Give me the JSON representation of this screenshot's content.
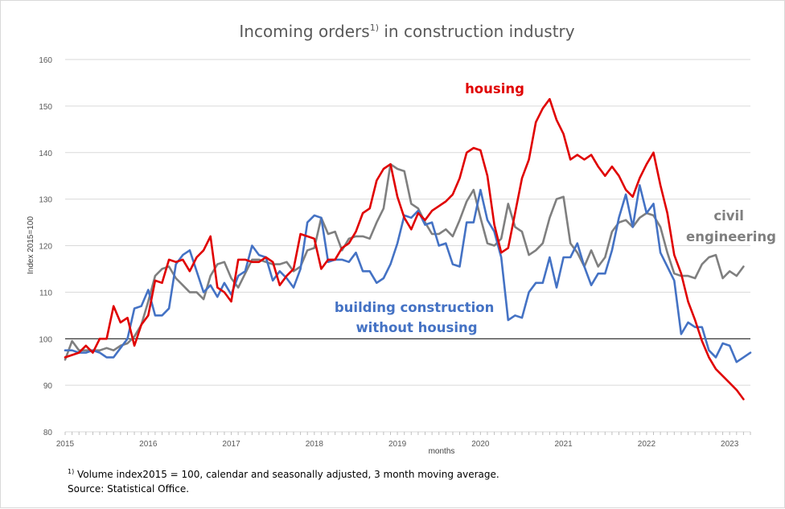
{
  "colors": {
    "housing": "#e00000",
    "civil": "#7f7f7f",
    "building": "#4472c4",
    "grid": "#d9d9d9",
    "baseline": "#000000"
  },
  "chart_data": {
    "type": "line",
    "title_main": "Incoming orders",
    "title_sup": "1)",
    "title_rest": " in construction industry",
    "ylabel": "Index 2015=100",
    "xlabel": "months",
    "ylim": [
      80,
      160
    ],
    "yticks": [
      80,
      90,
      100,
      110,
      120,
      130,
      140,
      150,
      160
    ],
    "xlim": [
      2015.0,
      2023.25
    ],
    "xticks": [
      "2015",
      "2016",
      "2017",
      "2018",
      "2019",
      "2020",
      "2021",
      "2022",
      "2023"
    ],
    "reference_line": 100,
    "grid": "horizontal",
    "start": "2015-01",
    "series": [
      {
        "key": "housing",
        "name_lines": [
          "housing"
        ],
        "values": [
          96,
          96.5,
          97,
          98.5,
          97,
          100,
          100,
          107,
          103.5,
          104.5,
          98.5,
          103,
          105,
          112.5,
          112,
          117,
          116.5,
          117,
          114.5,
          117.5,
          119,
          122,
          111,
          110,
          108,
          117,
          117,
          116.5,
          116.5,
          117.5,
          116.5,
          111.5,
          113.5,
          115,
          122.5,
          122,
          121.5,
          115,
          117,
          117,
          119.5,
          120.5,
          123,
          127,
          128,
          134,
          136.5,
          137.5,
          130.5,
          126,
          123.5,
          127,
          125.5,
          127.5,
          128.5,
          129.5,
          131,
          134.5,
          140,
          141,
          140.5,
          135,
          124.5,
          118.5,
          119.5,
          127,
          134.5,
          138.5,
          146.5,
          149.5,
          151.5,
          147,
          144,
          138.5,
          139.5,
          138.5,
          139.5,
          137,
          135,
          137,
          135,
          132,
          130.5,
          134.5,
          137.5,
          140,
          133,
          127,
          118,
          114,
          108,
          104,
          99.5,
          96,
          93.5,
          92,
          90.5,
          89,
          87
        ]
      },
      {
        "key": "civil",
        "name_lines": [
          "civil",
          "engineering"
        ],
        "values": [
          95.5,
          99.5,
          97.5,
          97.5,
          97.5,
          97.5,
          98,
          97.5,
          98.5,
          99,
          100.5,
          103,
          108,
          113.5,
          115,
          115.5,
          113,
          111.5,
          110,
          110,
          108.5,
          113.5,
          116,
          116.5,
          113,
          111,
          114,
          117,
          117,
          116.5,
          116,
          116,
          116.5,
          114.5,
          115.5,
          119,
          119.5,
          126,
          122.5,
          123,
          119,
          121.5,
          122,
          122,
          121.5,
          125,
          128,
          137.5,
          136.5,
          136,
          129,
          128,
          125,
          122.5,
          122.5,
          123.5,
          122,
          125.5,
          129.5,
          132,
          126,
          120.5,
          120,
          121.5,
          129,
          124,
          123,
          118,
          119,
          120.5,
          126,
          130,
          130.5,
          120.5,
          118.5,
          115.5,
          119,
          115.5,
          117.5,
          123,
          125,
          125.5,
          124,
          126,
          127,
          126.5,
          124,
          118.5,
          114,
          113.5,
          113.5,
          113,
          116,
          117.5,
          118,
          113,
          114.5,
          113.5,
          115.5
        ]
      },
      {
        "key": "building",
        "name_lines": [
          "building  construction",
          "without housing"
        ],
        "values": [
          97.5,
          97.5,
          97,
          97,
          97.5,
          97,
          96,
          96,
          98,
          100,
          106.5,
          107,
          110.5,
          105,
          105,
          106.5,
          116,
          118,
          119,
          114.5,
          110,
          111.5,
          109,
          112,
          109.5,
          113.5,
          114.5,
          120,
          118,
          117.5,
          112.5,
          114.5,
          113,
          111,
          115,
          125,
          126.5,
          126,
          116.5,
          117,
          117,
          116.5,
          118.5,
          114.5,
          114.5,
          112,
          113,
          116,
          120.5,
          126.5,
          126,
          127.5,
          124.5,
          125,
          120,
          120.5,
          116,
          115.5,
          125,
          125,
          132,
          125.5,
          123,
          117.5,
          104,
          105,
          104.5,
          110,
          112,
          112,
          117.5,
          111,
          117.5,
          117.5,
          120.5,
          115.5,
          111.5,
          114,
          114,
          119,
          126,
          131,
          124,
          133,
          127,
          129,
          118.5,
          115.5,
          112.5,
          101,
          103.5,
          102.5,
          102.5,
          97.5,
          96,
          99,
          98.5,
          95,
          96,
          97
        ]
      }
    ]
  },
  "footnote": {
    "marker": "1)",
    "text": " Volume index2015 = 100,  calendar and seasonally adjusted, 3 month moving average.",
    "source": "Source: Statistical Office."
  }
}
